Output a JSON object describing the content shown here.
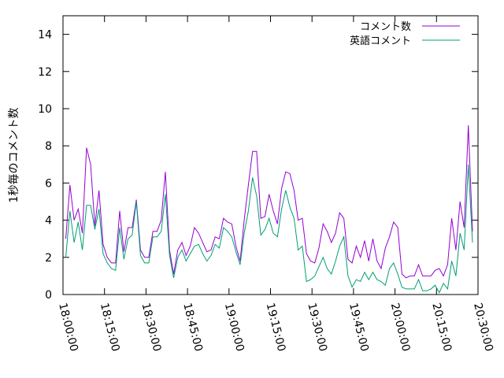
{
  "chart_data": {
    "type": "line",
    "title": "",
    "xlabel": "",
    "ylabel": "1秒毎のコメント数",
    "xlim": [
      "18:00:00",
      "20:30:00"
    ],
    "ylim": [
      0,
      15
    ],
    "xticks": [
      "18:00:00",
      "18:15:00",
      "18:30:00",
      "18:45:00",
      "19:00:00",
      "19:15:00",
      "19:30:00",
      "19:45:00",
      "20:00:00",
      "20:15:00",
      "20:30:00"
    ],
    "yticks": [
      "0",
      "2",
      "4",
      "6",
      "8",
      "10",
      "12",
      "14"
    ],
    "grid": false,
    "legend_position": "top-right",
    "interval_minutes": 1.5,
    "series": [
      {
        "name": "コメント数",
        "color": "#9400d3",
        "start": "18:01:00",
        "values": [
          3.0,
          5.9,
          4.0,
          4.6,
          3.3,
          7.9,
          7.0,
          3.7,
          5.6,
          2.7,
          2.0,
          1.7,
          1.7,
          4.5,
          2.3,
          3.6,
          3.6,
          5.1,
          2.4,
          2.0,
          2.0,
          3.4,
          3.4,
          4.0,
          6.6,
          2.4,
          1.1,
          2.4,
          2.8,
          2.1,
          2.6,
          3.6,
          3.3,
          2.8,
          2.3,
          2.4,
          3.1,
          3.0,
          4.1,
          3.9,
          3.8,
          2.6,
          1.8,
          4.0,
          5.9,
          7.7,
          7.7,
          4.1,
          4.2,
          5.4,
          4.5,
          3.8,
          5.7,
          6.6,
          6.5,
          5.6,
          4.0,
          4.1,
          2.2,
          1.8,
          1.7,
          2.5,
          3.8,
          3.4,
          2.8,
          3.3,
          4.4,
          4.1,
          1.9,
          1.7,
          2.6,
          2.0,
          2.9,
          1.8,
          3.0,
          1.8,
          1.4,
          2.5,
          3.1,
          3.9,
          3.6,
          1.1,
          0.9,
          1.0,
          1.0,
          1.6,
          1.0,
          1.0,
          1.0,
          1.3,
          1.4,
          1.0,
          1.6,
          4.1,
          2.4,
          5.0,
          3.6,
          9.1,
          3.4
        ]
      },
      {
        "name": "英語コメント",
        "color": "#009e73",
        "start": "18:01:00",
        "values": [
          2.0,
          4.5,
          2.8,
          3.9,
          2.4,
          4.8,
          4.8,
          3.5,
          4.6,
          2.2,
          1.7,
          1.4,
          1.3,
          3.6,
          1.9,
          3.0,
          3.2,
          5.0,
          2.1,
          1.7,
          1.7,
          3.1,
          3.1,
          3.4,
          5.4,
          2.1,
          0.9,
          2.0,
          2.4,
          1.8,
          2.2,
          2.6,
          2.7,
          2.2,
          1.8,
          2.1,
          2.7,
          2.5,
          3.6,
          3.4,
          3.1,
          2.3,
          1.6,
          3.3,
          4.5,
          6.3,
          5.3,
          3.2,
          3.5,
          4.1,
          3.3,
          3.1,
          4.6,
          5.6,
          4.7,
          4.1,
          2.4,
          2.6,
          0.7,
          0.8,
          1.0,
          1.5,
          2.0,
          1.4,
          1.1,
          1.8,
          2.6,
          3.1,
          1.0,
          0.4,
          0.8,
          0.7,
          1.2,
          0.8,
          1.2,
          0.8,
          0.7,
          0.5,
          1.4,
          1.7,
          1.1,
          0.4,
          0.3,
          0.3,
          0.3,
          0.8,
          0.2,
          0.2,
          0.3,
          0.5,
          0.1,
          0.6,
          0.3,
          1.8,
          1.0,
          3.3,
          2.4,
          7.0,
          2.8
        ]
      }
    ]
  }
}
